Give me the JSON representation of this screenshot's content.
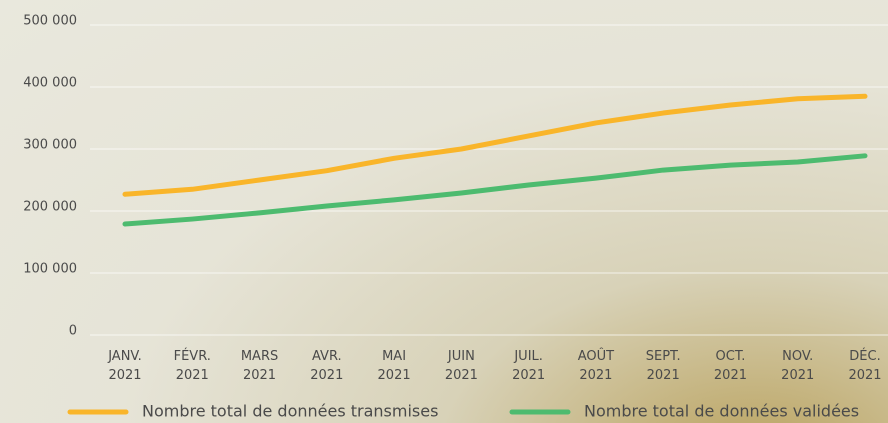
{
  "chart_data": {
    "type": "line",
    "categories": [
      "JANV. 2021",
      "FÉVR. 2021",
      "MARS 2021",
      "AVR. 2021",
      "MAI 2021",
      "JUIN 2021",
      "JUIL. 2021",
      "AOÛT 2021",
      "SEPT. 2021",
      "OCT. 2021",
      "NOV. 2021",
      "DÉC. 2021"
    ],
    "series": [
      {
        "name": "Nombre total de données transmises",
        "color": "#f9b52a",
        "values": [
          227000,
          235000,
          250000,
          265000,
          285000,
          300000,
          321000,
          342000,
          358000,
          371000,
          381000,
          385000
        ]
      },
      {
        "name": "Nombre total de données validées",
        "color": "#4dbb6f",
        "values": [
          179000,
          187000,
          197000,
          208000,
          218000,
          229000,
          242000,
          253000,
          266000,
          274000,
          279000,
          289000
        ]
      }
    ],
    "ylim": [
      0,
      500000
    ],
    "yticks": [
      0,
      {
        "value": 100000,
        "label": "100 000"
      },
      {
        "value": 200000,
        "label": "200 000"
      },
      {
        "value": 300000,
        "label": "300 000"
      },
      {
        "value": 400000,
        "label": "400 000"
      },
      {
        "value": 500000,
        "label": "500 000"
      }
    ],
    "grid": true
  }
}
